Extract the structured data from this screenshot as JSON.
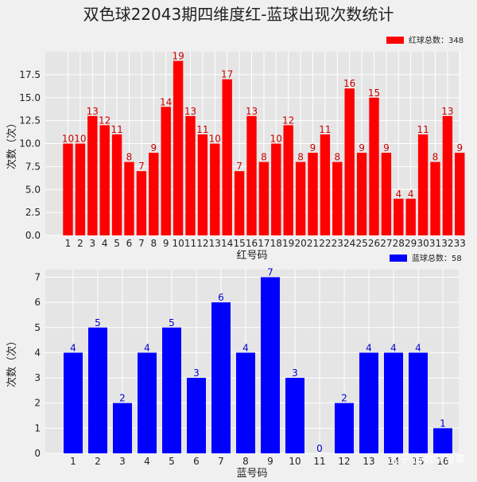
{
  "title": "双色球22043期四维度红-蓝球出现次数统计",
  "watermark": "知乎 @数字故事",
  "chart_data": [
    {
      "type": "bar",
      "color": "#ff0000",
      "label_color": "#cc0000",
      "legend": "红球总数：348",
      "legend_placement": "top-right",
      "xlabel": "红号码",
      "ylabel": "次数（次）",
      "ylim": [
        0,
        20
      ],
      "yticks": [
        "0.0",
        "2.5",
        "5.0",
        "7.5",
        "10.0",
        "12.5",
        "15.0",
        "17.5"
      ],
      "grid": true,
      "categories": [
        "1",
        "2",
        "3",
        "4",
        "5",
        "6",
        "7",
        "8",
        "9",
        "10",
        "11",
        "12",
        "13",
        "14",
        "15",
        "16",
        "17",
        "18",
        "19",
        "20",
        "21",
        "22",
        "23",
        "24",
        "25",
        "26",
        "27",
        "28",
        "29",
        "30",
        "31",
        "32",
        "33"
      ],
      "values": [
        10,
        10,
        13,
        12,
        11,
        8,
        7,
        9,
        14,
        19,
        13,
        11,
        10,
        17,
        7,
        13,
        8,
        10,
        12,
        8,
        9,
        11,
        8,
        16,
        9,
        15,
        9,
        4,
        4,
        11,
        8,
        13,
        9
      ]
    },
    {
      "type": "bar",
      "color": "#0000ff",
      "label_color": "#0000cc",
      "legend": "蓝球总数：58",
      "legend_placement": "top-right",
      "xlabel": "蓝号码",
      "ylabel": "次数（次）",
      "ylim": [
        0,
        7.3
      ],
      "yticks": [
        "0",
        "1",
        "2",
        "3",
        "4",
        "5",
        "6",
        "7"
      ],
      "grid": true,
      "categories": [
        "1",
        "2",
        "3",
        "4",
        "5",
        "6",
        "7",
        "8",
        "9",
        "10",
        "11",
        "12",
        "13",
        "14",
        "15",
        "16"
      ],
      "values": [
        4,
        5,
        2,
        4,
        5,
        3,
        6,
        4,
        7,
        3,
        0,
        2,
        4,
        4,
        4,
        1
      ]
    }
  ]
}
